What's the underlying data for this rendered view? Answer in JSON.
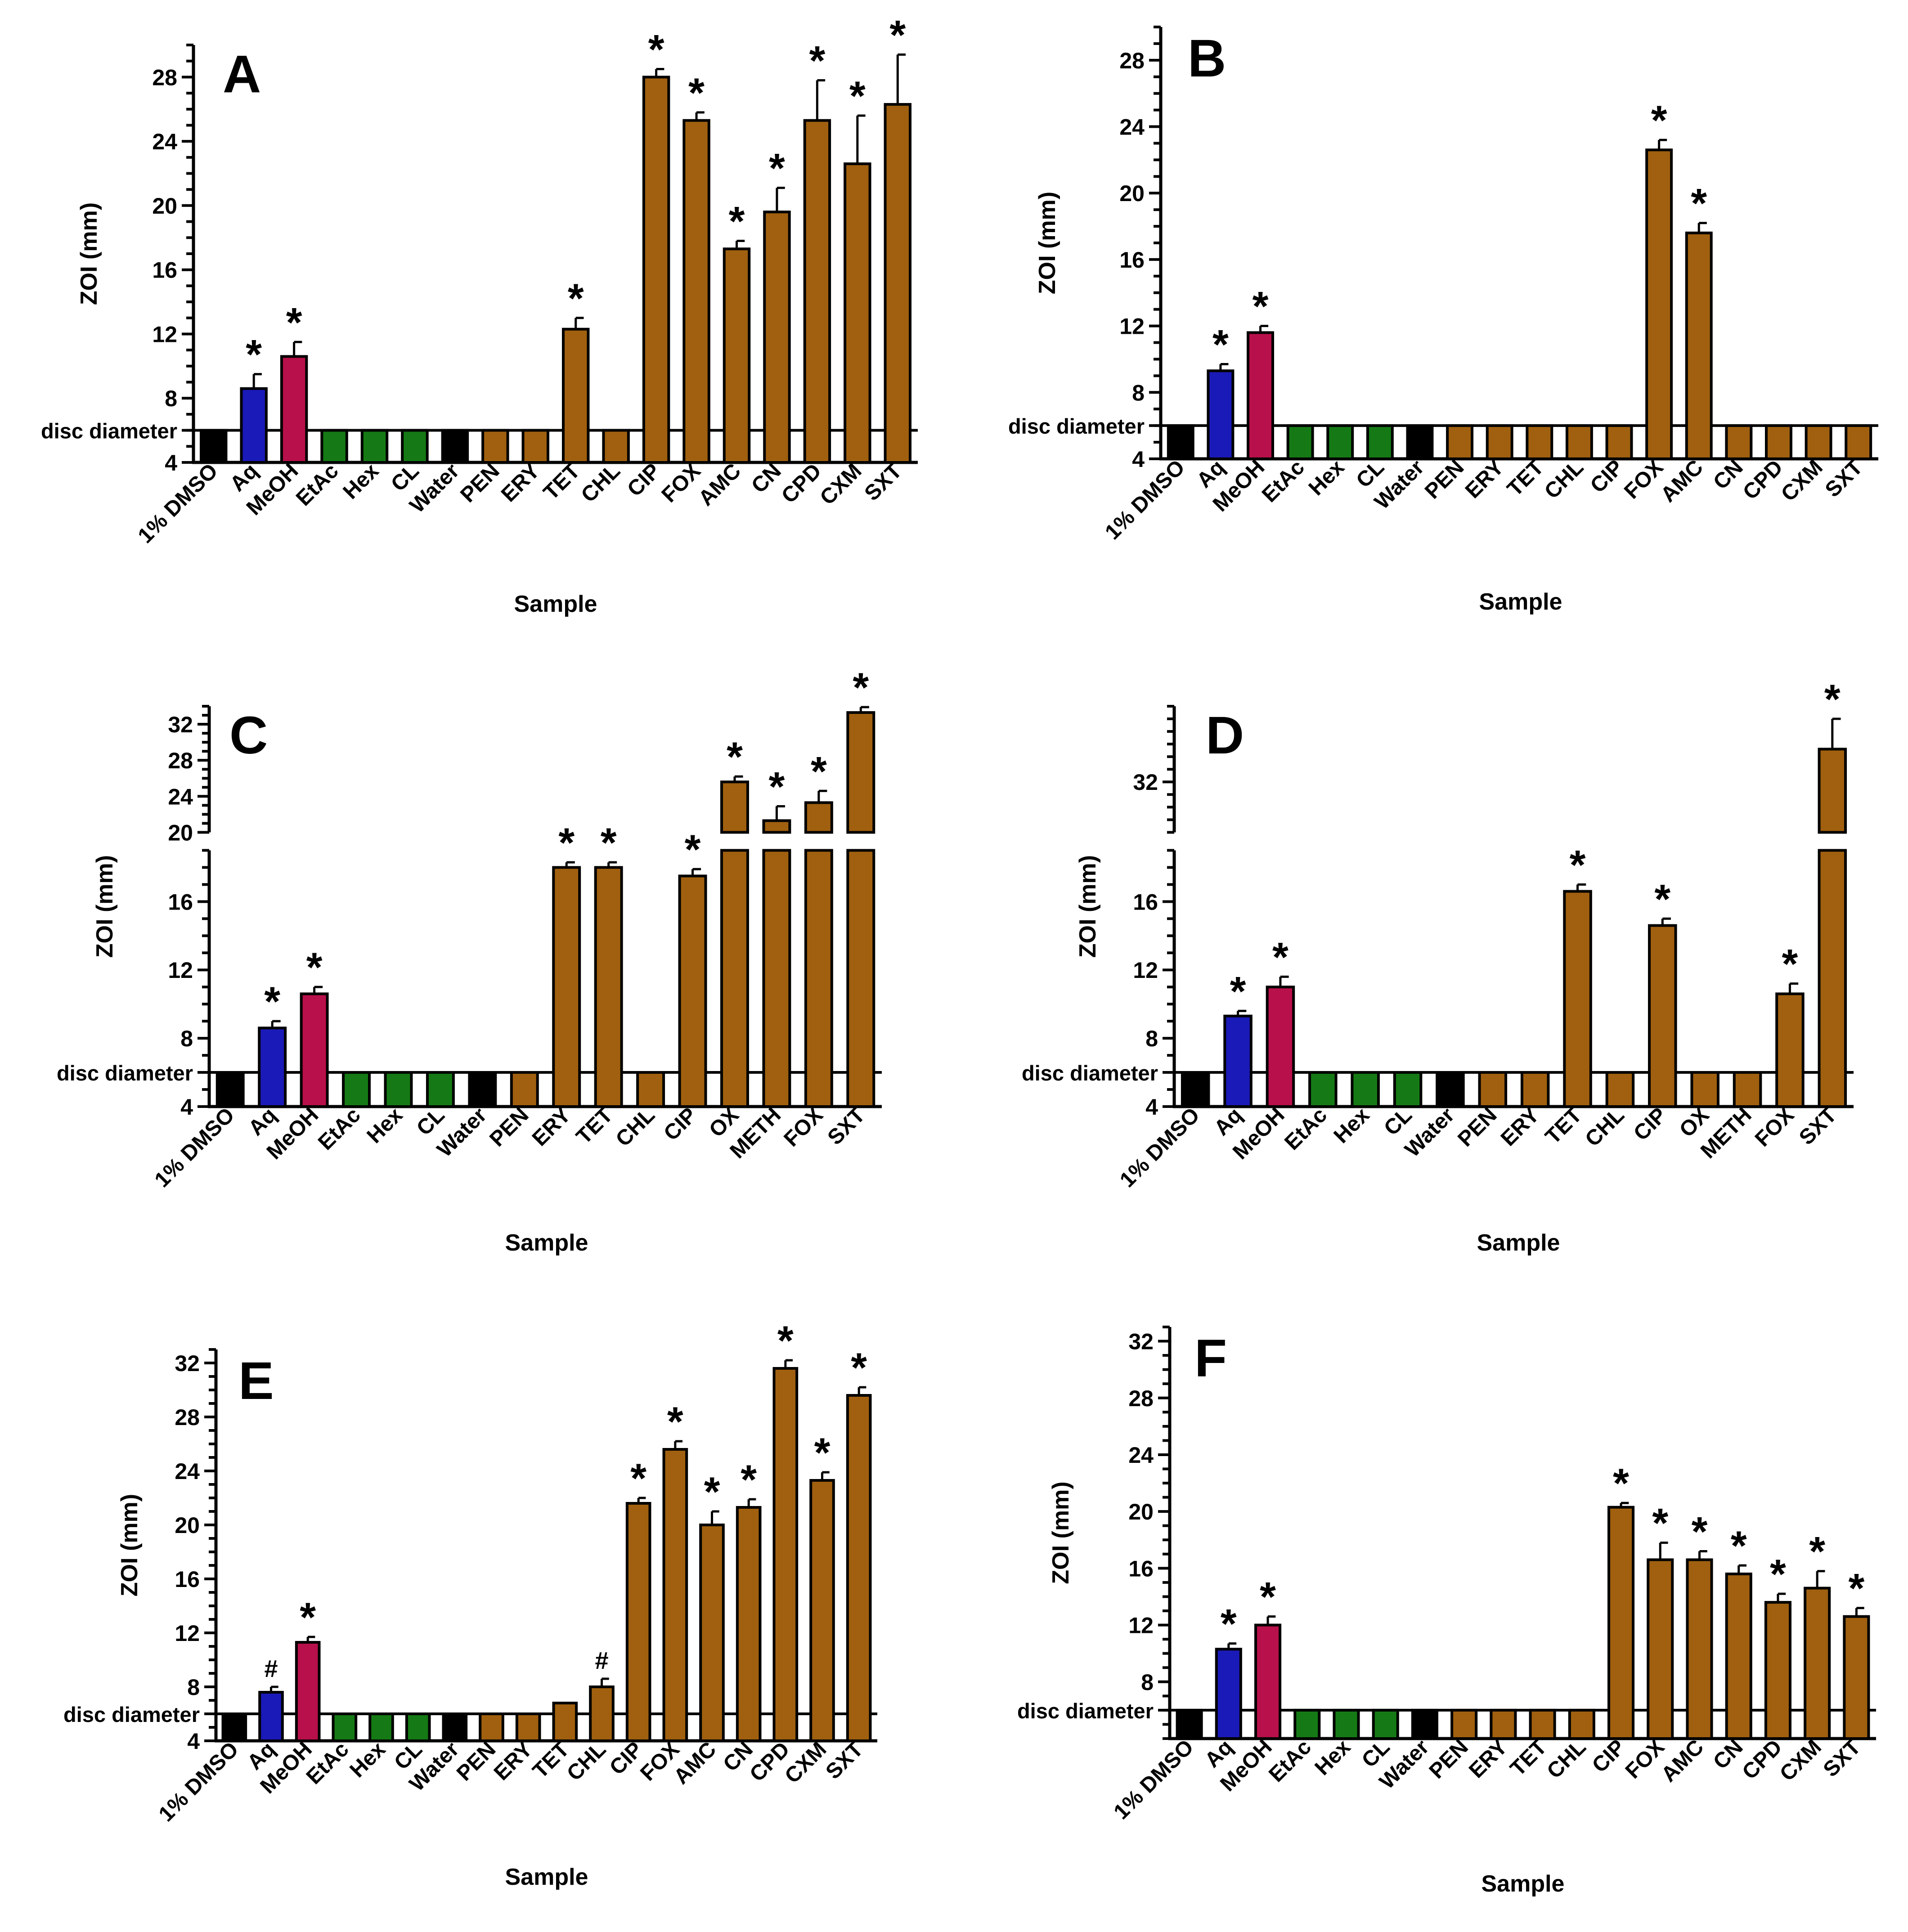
{
  "figure": {
    "colors": {
      "control": "#000000",
      "aq": "#1a1ab8",
      "meoh": "#b8104a",
      "solvent": "#157a15",
      "antibiotic": "#a0600f",
      "axis": "#000000"
    }
  },
  "chart_data": [
    {
      "panel": "A",
      "type": "bar",
      "xlabel": "Sample",
      "ylabel": "ZOI (mm)",
      "reference_label": "disc diameter",
      "reference_value": 6,
      "ylim": [
        4,
        30
      ],
      "yticks": [
        "4",
        "8",
        "12",
        "16",
        "20",
        "24",
        "28"
      ],
      "categories": [
        "1% DMSO",
        "Aq",
        "MeOH",
        "EtAc",
        "Hex",
        "CL",
        "Water",
        "PEN",
        "ERY",
        "TET",
        "CHL",
        "CIP",
        "FOX",
        "AMC",
        "CN",
        "CPD",
        "CXM",
        "SXT"
      ],
      "groups": [
        "control",
        "aq",
        "meoh",
        "solvent",
        "solvent",
        "solvent",
        "control",
        "antibiotic",
        "antibiotic",
        "antibiotic",
        "antibiotic",
        "antibiotic",
        "antibiotic",
        "antibiotic",
        "antibiotic",
        "antibiotic",
        "antibiotic",
        "antibiotic"
      ],
      "values": [
        6,
        8.6,
        10.6,
        6,
        6,
        6,
        6,
        6,
        6,
        12.3,
        6,
        28,
        25.3,
        17.3,
        19.6,
        25.3,
        22.6,
        26.3
      ],
      "errors": [
        0,
        0.9,
        0.9,
        0,
        0,
        0,
        0,
        0,
        0,
        0.7,
        0,
        0.5,
        0.5,
        0.5,
        1.5,
        2.5,
        3.0,
        3.1
      ],
      "annotations": [
        "",
        "*",
        "*",
        "",
        "",
        "",
        "",
        "",
        "",
        "*",
        "",
        "*",
        "*",
        "*",
        "*",
        "*",
        "*",
        "*"
      ]
    },
    {
      "panel": "B",
      "type": "bar",
      "xlabel": "Sample",
      "ylabel": "ZOI (mm)",
      "reference_label": "disc diameter",
      "reference_value": 6,
      "ylim": [
        4,
        30
      ],
      "yticks": [
        "4",
        "8",
        "12",
        "16",
        "20",
        "24",
        "28"
      ],
      "categories": [
        "1% DMSO",
        "Aq",
        "MeOH",
        "EtAc",
        "Hex",
        "CL",
        "Water",
        "PEN",
        "ERY",
        "TET",
        "CHL",
        "CIP",
        "FOX",
        "AMC",
        "CN",
        "CPD",
        "CXM",
        "SXT"
      ],
      "groups": [
        "control",
        "aq",
        "meoh",
        "solvent",
        "solvent",
        "solvent",
        "control",
        "antibiotic",
        "antibiotic",
        "antibiotic",
        "antibiotic",
        "antibiotic",
        "antibiotic",
        "antibiotic",
        "antibiotic",
        "antibiotic",
        "antibiotic",
        "antibiotic"
      ],
      "values": [
        6,
        9.3,
        11.6,
        6,
        6,
        6,
        6,
        6,
        6,
        6,
        6,
        6,
        22.6,
        17.6,
        6,
        6,
        6,
        6
      ],
      "errors": [
        0,
        0.4,
        0.4,
        0,
        0,
        0,
        0,
        0,
        0,
        0,
        0,
        0,
        0.6,
        0.6,
        0,
        0,
        0,
        0
      ],
      "annotations": [
        "",
        "*",
        "*",
        "",
        "",
        "",
        "",
        "",
        "",
        "",
        "",
        "",
        "*",
        "*",
        "",
        "",
        "",
        ""
      ]
    },
    {
      "panel": "C",
      "type": "bar",
      "xlabel": "Sample",
      "ylabel": "ZOI (mm)",
      "reference_label": "disc diameter",
      "reference_value": 6,
      "broken_axis": true,
      "lower_ylim": [
        4,
        19
      ],
      "lower_yticks": [
        "4",
        "8",
        "12",
        "16"
      ],
      "upper_ylim": [
        20,
        34
      ],
      "upper_yticks": [
        "20",
        "24",
        "28",
        "32"
      ],
      "categories": [
        "1% DMSO",
        "Aq",
        "MeOH",
        "EtAc",
        "Hex",
        "CL",
        "Water",
        "PEN",
        "ERY",
        "TET",
        "CHL",
        "CIP",
        "OX",
        "METH",
        "FOX",
        "SXT"
      ],
      "groups": [
        "control",
        "aq",
        "meoh",
        "solvent",
        "solvent",
        "solvent",
        "control",
        "antibiotic",
        "antibiotic",
        "antibiotic",
        "antibiotic",
        "antibiotic",
        "antibiotic",
        "antibiotic",
        "antibiotic",
        "antibiotic"
      ],
      "values": [
        6,
        8.6,
        10.6,
        6,
        6,
        6,
        6,
        6,
        18,
        18,
        6,
        17.5,
        25.6,
        21.3,
        23.3,
        33.3
      ],
      "errors": [
        0,
        0.4,
        0.4,
        0,
        0,
        0,
        0,
        0,
        0.3,
        0.3,
        0,
        0.4,
        0.6,
        1.6,
        1.3,
        0.6
      ],
      "annotations": [
        "",
        "*",
        "*",
        "",
        "",
        "",
        "",
        "",
        "*",
        "*",
        "",
        "*",
        "*",
        "*",
        "*",
        "*"
      ]
    },
    {
      "panel": "D",
      "type": "bar",
      "xlabel": "Sample",
      "ylabel": "ZOI (mm)",
      "reference_label": "disc diameter",
      "reference_value": 6,
      "broken_axis": true,
      "lower_ylim": [
        4,
        19
      ],
      "lower_yticks": [
        "4",
        "8",
        "12",
        "16"
      ],
      "upper_ylim": [
        28,
        38
      ],
      "upper_yticks": [
        "32"
      ],
      "categories": [
        "1% DMSO",
        "Aq",
        "MeOH",
        "EtAc",
        "Hex",
        "CL",
        "Water",
        "PEN",
        "ERY",
        "TET",
        "CHL",
        "CIP",
        "OX",
        "METH",
        "FOX",
        "SXT"
      ],
      "groups": [
        "control",
        "aq",
        "meoh",
        "solvent",
        "solvent",
        "solvent",
        "control",
        "antibiotic",
        "antibiotic",
        "antibiotic",
        "antibiotic",
        "antibiotic",
        "antibiotic",
        "antibiotic",
        "antibiotic",
        "antibiotic"
      ],
      "values": [
        6,
        9.3,
        11,
        6,
        6,
        6,
        6,
        6,
        6,
        16.6,
        6,
        14.6,
        6,
        6,
        10.6,
        34.6
      ],
      "errors": [
        0,
        0.3,
        0.6,
        0,
        0,
        0,
        0,
        0,
        0,
        0.4,
        0,
        0.4,
        0,
        0,
        0.6,
        2.4
      ],
      "annotations": [
        "",
        "*",
        "*",
        "",
        "",
        "",
        "",
        "",
        "",
        "*",
        "",
        "*",
        "",
        "",
        "*",
        "*"
      ]
    },
    {
      "panel": "E",
      "type": "bar",
      "xlabel": "Sample",
      "ylabel": "ZOI (mm)",
      "reference_label": "disc diameter",
      "reference_value": 6,
      "ylim": [
        4,
        33
      ],
      "yticks": [
        "4",
        "8",
        "12",
        "16",
        "20",
        "24",
        "28",
        "32"
      ],
      "categories": [
        "1% DMSO",
        "Aq",
        "MeOH",
        "EtAc",
        "Hex",
        "CL",
        "Water",
        "PEN",
        "ERY",
        "TET",
        "CHL",
        "CIP",
        "FOX",
        "AMC",
        "CN",
        "CPD",
        "CXM",
        "SXT"
      ],
      "groups": [
        "control",
        "aq",
        "meoh",
        "solvent",
        "solvent",
        "solvent",
        "control",
        "antibiotic",
        "antibiotic",
        "antibiotic",
        "antibiotic",
        "antibiotic",
        "antibiotic",
        "antibiotic",
        "antibiotic",
        "antibiotic",
        "antibiotic",
        "antibiotic"
      ],
      "values": [
        6,
        7.6,
        11.3,
        6,
        6,
        6,
        6,
        6,
        6,
        6.8,
        8,
        21.6,
        25.6,
        20,
        21.3,
        31.6,
        23.3,
        29.6
      ],
      "errors": [
        0,
        0.4,
        0.4,
        0,
        0,
        0,
        0,
        0,
        0,
        0,
        0.6,
        0.4,
        0.6,
        1.0,
        0.6,
        0.6,
        0.6,
        0.6
      ],
      "annotations": [
        "",
        "#",
        "*",
        "",
        "",
        "",
        "",
        "",
        "",
        "",
        "#",
        "*",
        "*",
        "*",
        "*",
        "*",
        "*",
        "*"
      ]
    },
    {
      "panel": "F",
      "type": "bar",
      "xlabel": "Sample",
      "ylabel": "ZOI (mm)",
      "reference_label": "disc diameter",
      "reference_value": 6,
      "ylim": [
        4,
        33
      ],
      "yticks": [
        "8",
        "12",
        "16",
        "20",
        "24",
        "28",
        "32"
      ],
      "categories": [
        "1% DMSO",
        "Aq",
        "MeOH",
        "EtAc",
        "Hex",
        "CL",
        "Water",
        "PEN",
        "ERY",
        "TET",
        "CHL",
        "CIP",
        "FOX",
        "AMC",
        "CN",
        "CPD",
        "CXM",
        "SXT"
      ],
      "groups": [
        "control",
        "aq",
        "meoh",
        "solvent",
        "solvent",
        "solvent",
        "control",
        "antibiotic",
        "antibiotic",
        "antibiotic",
        "antibiotic",
        "antibiotic",
        "antibiotic",
        "antibiotic",
        "antibiotic",
        "antibiotic",
        "antibiotic",
        "antibiotic"
      ],
      "values": [
        6,
        10.3,
        12,
        6,
        6,
        6,
        6,
        6,
        6,
        6,
        6,
        20.3,
        16.6,
        16.6,
        15.6,
        13.6,
        14.6,
        12.6
      ],
      "errors": [
        0,
        0.4,
        0.6,
        0,
        0,
        0,
        0,
        0,
        0,
        0,
        0,
        0.3,
        1.2,
        0.6,
        0.6,
        0.6,
        1.2,
        0.6
      ],
      "annotations": [
        "",
        "*",
        "*",
        "",
        "",
        "",
        "",
        "",
        "",
        "",
        "",
        "*",
        "*",
        "*",
        "*",
        "*",
        "*",
        "*"
      ]
    }
  ]
}
